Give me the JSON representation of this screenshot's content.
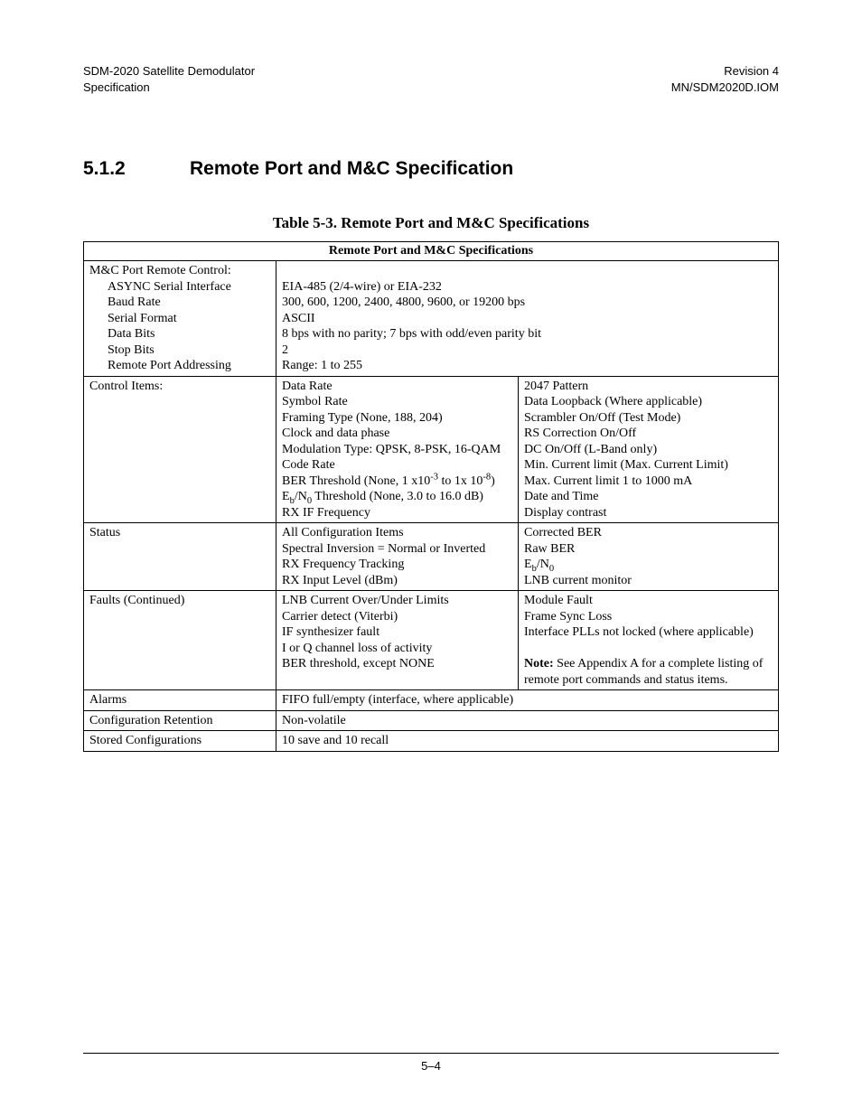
{
  "header": {
    "left1": "SDM-2020 Satellite Demodulator",
    "left2": "Specification",
    "right1": "Revision 4",
    "right2": "MN/SDM2020D.IOM"
  },
  "section": {
    "number": "5.1.2",
    "title": "Remote Port and M&C Specification"
  },
  "table": {
    "caption": "Table 5-3.  Remote Port and M&C Specifications",
    "title_row": "Remote Port and M&C Specifications",
    "row1": {
      "label": "M&C Port Remote Control:",
      "sub1": "ASYNC Serial Interface",
      "sub2": "Baud Rate",
      "sub3": "Serial Format",
      "sub4": "Data Bits",
      "sub5": "Stop Bits",
      "sub6": "Remote Port Addressing",
      "v1": "EIA-485 (2/4-wire) or EIA-232",
      "v2": "300, 600, 1200, 2400, 4800, 9600, or 19200 bps",
      "v3": "ASCII",
      "v4": "8 bps with no parity; 7 bps with odd/even parity bit",
      "v5": "2",
      "v6": "Range: 1 to 255"
    },
    "row2": {
      "label": "Control Items:",
      "colA": {
        "l1": "Data Rate",
        "l2": "Symbol Rate",
        "l3": "Framing Type (None, 188, 204)",
        "l4": "Clock and data phase",
        "l5": "Modulation Type: QPSK, 8-PSK, 16-QAM",
        "l6": "Code Rate",
        "l7_pre": "BER Threshold (None, 1 x10",
        "l7_sup1": "-3",
        "l7_mid": " to 1x 10",
        "l7_sup2": "-8",
        "l7_post": ")",
        "l8_pre": "E",
        "l8_sub1": "b",
        "l8_mid": "/N",
        "l8_sub2": "0",
        "l8_post": " Threshold (None, 3.0 to 16.0 dB)",
        "l9": "RX IF Frequency"
      },
      "colB": {
        "l1": "2047 Pattern",
        "l2": "Data Loopback (Where applicable)",
        "l3": "Scrambler On/Off (Test Mode)",
        "l4": "RS Correction On/Off",
        "l5": "DC On/Off  (L-Band only)",
        "l6": "Min. Current limit (Max. Current Limit)",
        "l7": "Max. Current limit 1 to 1000 mA",
        "l8": "Date and Time",
        "l9": "Display contrast"
      }
    },
    "row3": {
      "label": "Status",
      "colA": {
        "l1": "All Configuration Items",
        "l2": "Spectral Inversion = Normal or Inverted",
        "l3": "RX Frequency Tracking",
        "l4": "RX Input Level (dBm)"
      },
      "colB": {
        "l1": "Corrected BER",
        "l2": "Raw BER",
        "l3_pre": "E",
        "l3_sub1": "b",
        "l3_mid": "/N",
        "l3_sub2": "0",
        "l4": "LNB current monitor"
      }
    },
    "row4": {
      "label": "Faults (Continued)",
      "colA": {
        "l1": "LNB Current Over/Under Limits",
        "l2": "Carrier detect (Viterbi)",
        "l3": "IF synthesizer fault",
        "l4": "I or Q channel loss of activity",
        "l5": "BER threshold, except NONE"
      },
      "colB": {
        "l1": "Module Fault",
        "l2": "Frame Sync Loss",
        "l3": "Interface PLLs not locked (where applicable)",
        "note_label": "Note:",
        "note_text": " See Appendix A for a complete listing of remote port commands and status items."
      }
    },
    "row5": {
      "label": "Alarms",
      "value": "FIFO full/empty (interface, where applicable)"
    },
    "row6": {
      "label": "Configuration Retention",
      "value": "Non-volatile"
    },
    "row7": {
      "label": "Stored Configurations",
      "value": "10 save and 10 recall"
    }
  },
  "footer": "5–4"
}
